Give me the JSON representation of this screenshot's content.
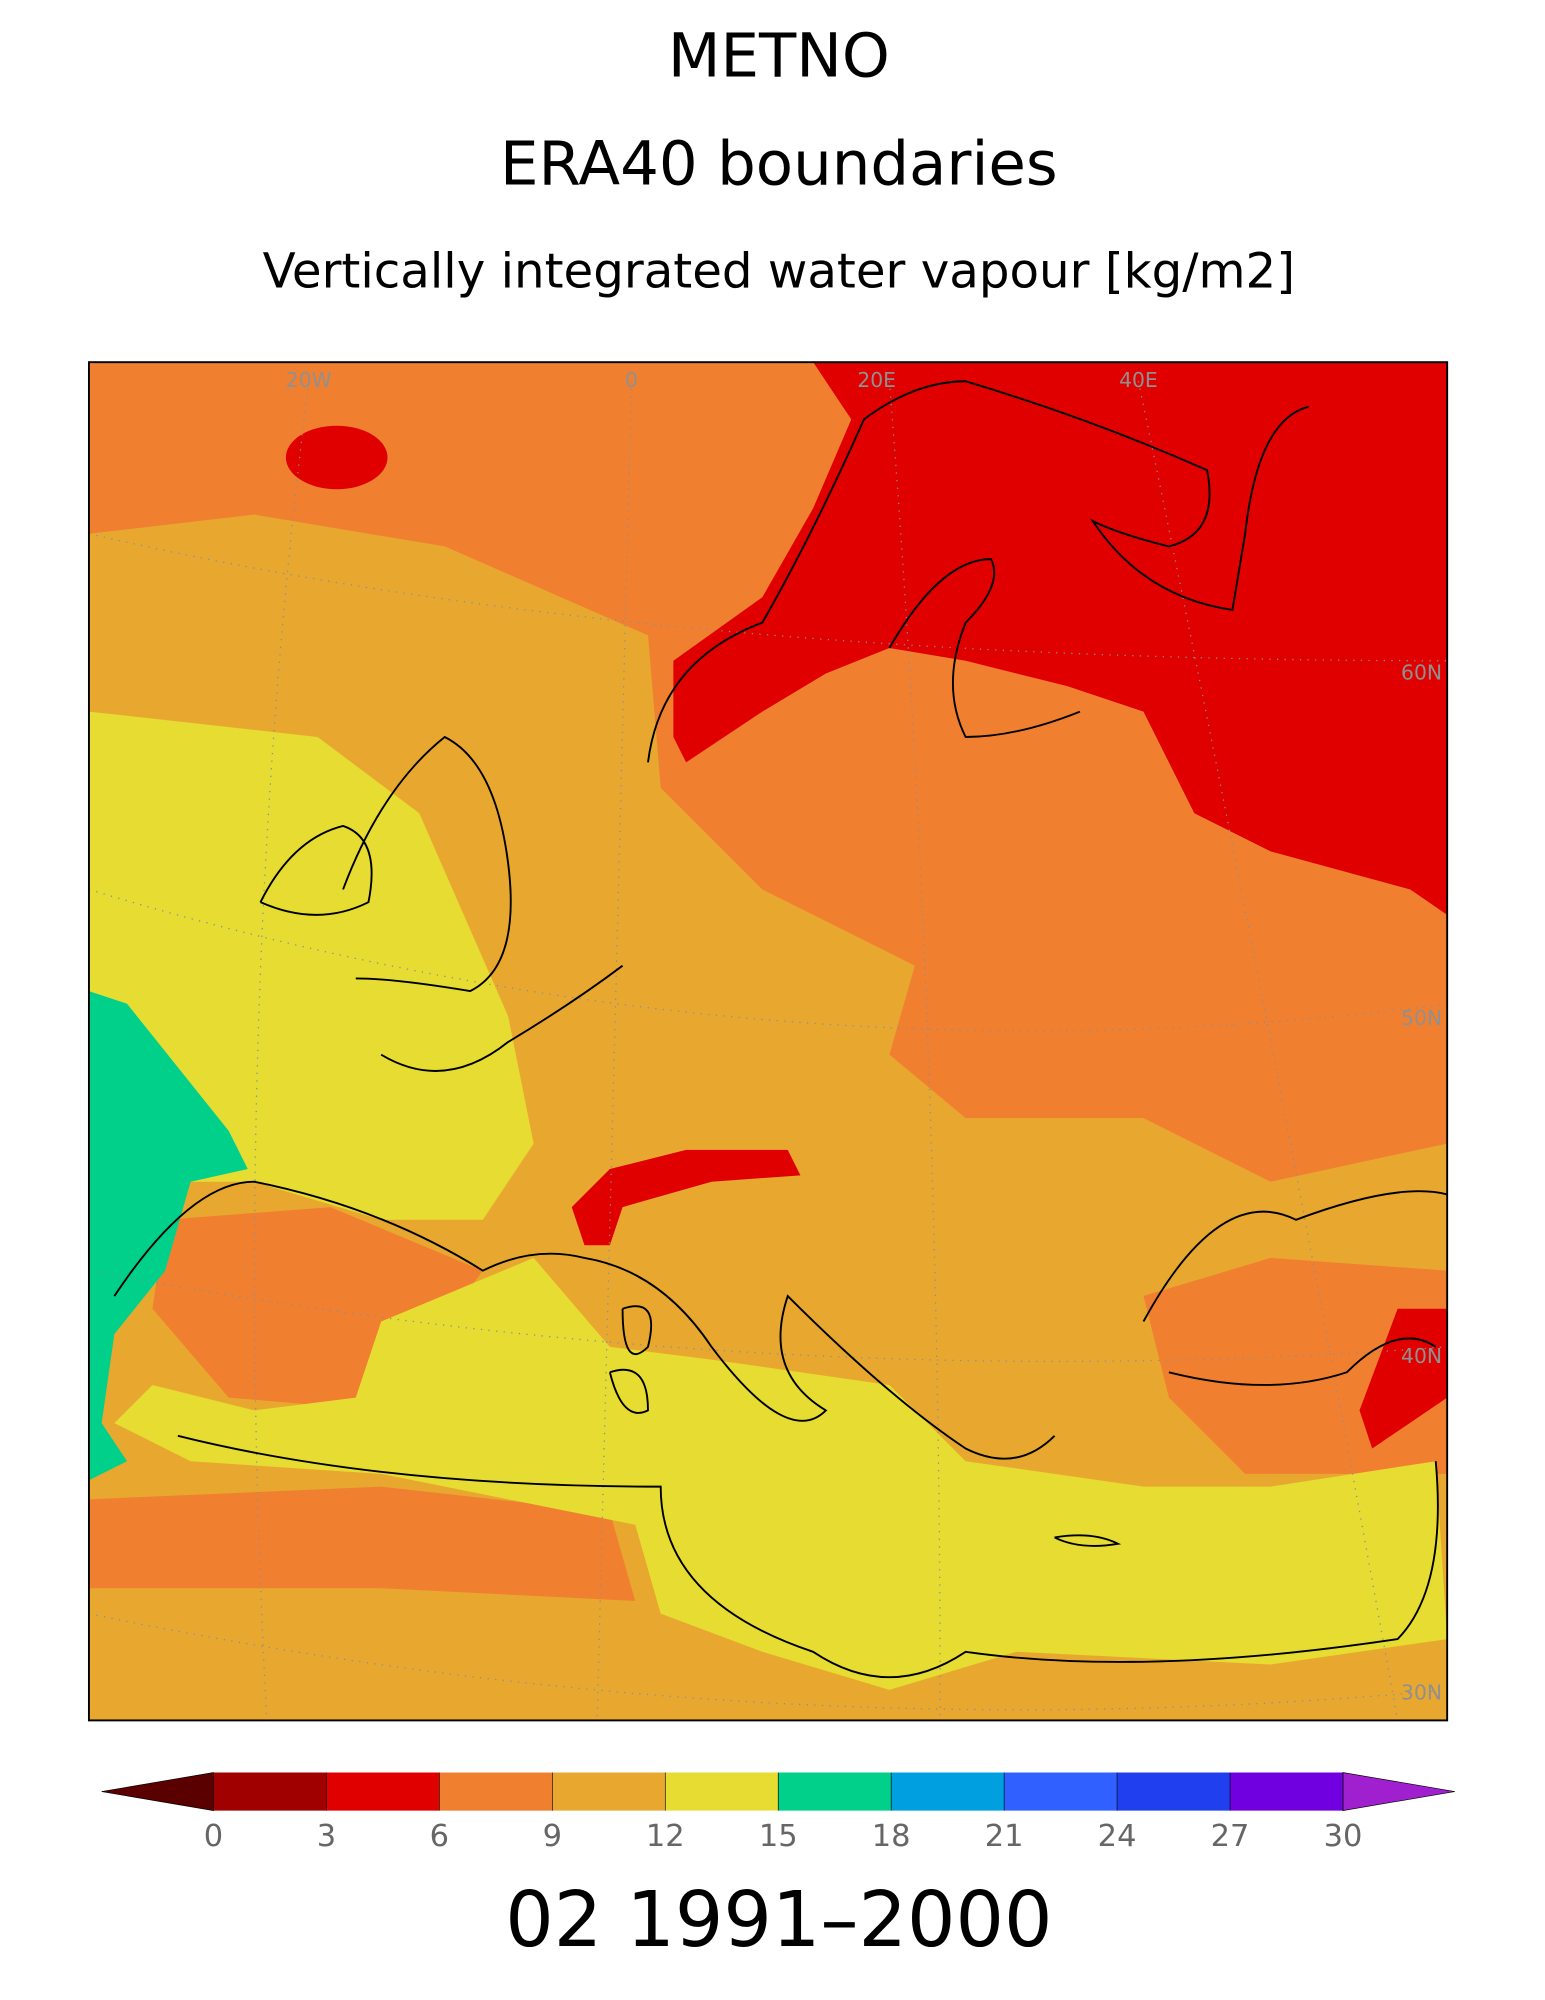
{
  "header": {
    "title": "METNO",
    "subtitle": "ERA40 boundaries",
    "variable": "Vertically integrated water vapour [kg/m2]"
  },
  "map": {
    "longitude_labels": [
      "20W",
      "0",
      "20E",
      "40E"
    ],
    "latitude_labels": [
      "60N",
      "50N",
      "40N",
      "30N"
    ]
  },
  "colorbar": {
    "ticks": [
      0,
      3,
      6,
      9,
      12,
      15,
      18,
      21,
      24,
      27,
      30
    ],
    "colors": [
      "#5a0000",
      "#a00000",
      "#e00000",
      "#f08030",
      "#e8a830",
      "#e6dc32",
      "#00d08a",
      "#00a0e0",
      "#3060ff",
      "#2040f0",
      "#7000e0",
      "#a020d0"
    ]
  },
  "footer": "02 1991–2000"
}
